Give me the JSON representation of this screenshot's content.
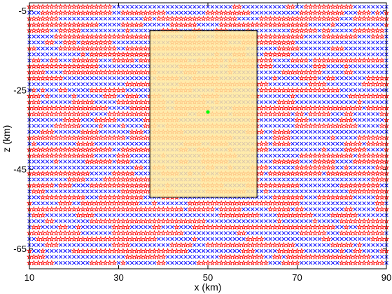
{
  "chart_data": {
    "type": "scatter",
    "xlabel": "x (km)",
    "ylabel": "z (km)",
    "xlim": [
      10,
      90
    ],
    "ylim": [
      -70,
      -3
    ],
    "xticks": [
      10,
      30,
      50,
      70,
      90
    ],
    "xtick_labels": [
      "10",
      "30",
      "50",
      "70",
      "90"
    ],
    "yticks": [
      -5,
      -25,
      -45,
      -65
    ],
    "ytick_labels": [
      "-5",
      "-25",
      "-45",
      "-65"
    ],
    "grid": false,
    "grid_points": {
      "x_start": 10,
      "x_end": 90,
      "x_step": 1,
      "z_start": -4,
      "z_end": -69,
      "z_step": -1.5
    },
    "series": [
      {
        "marker": "x",
        "color": "#0000ff"
      },
      {
        "marker": "star",
        "color": "#ff0000"
      }
    ],
    "highlighted_region": {
      "x": [
        37,
        61
      ],
      "z": [
        -10,
        -52
      ],
      "fill": "#ffe79c",
      "edge": "#000000"
    },
    "source_point": {
      "x": 50,
      "z": -30.5,
      "color": "#00ff00"
    }
  }
}
